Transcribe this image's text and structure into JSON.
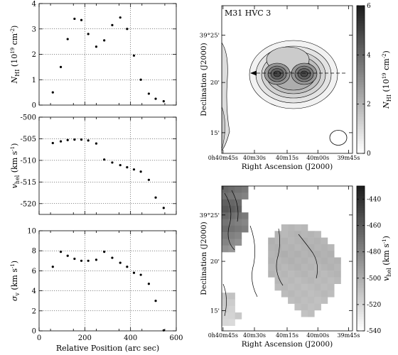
{
  "chart_data": [
    {
      "type": "scatter",
      "panel": "N_HI profile",
      "ylabel": "N_HI (10^19 cm^-2)",
      "ylabel_main": "N",
      "ylabel_sub": "HI",
      "ylabel_rest": " (10",
      "ylabel_exp": "19",
      "ylabel_unit": " cm",
      "ylabel_unit_exp": "-2",
      "ylabel_close": ")",
      "xlim": [
        0,
        600
      ],
      "ylim": [
        0,
        4
      ],
      "xticks": [
        "0",
        "200",
        "400",
        "600"
      ],
      "yticks": [
        "0",
        "1",
        "2",
        "3",
        "4"
      ],
      "show_xtick_labels": false,
      "grid": true,
      "x": [
        60,
        95,
        125,
        155,
        185,
        215,
        250,
        285,
        320,
        355,
        385,
        415,
        445,
        480,
        510,
        545
      ],
      "y": [
        0.5,
        1.5,
        2.6,
        3.4,
        3.35,
        2.8,
        2.3,
        2.55,
        3.15,
        3.45,
        3.0,
        1.95,
        1.0,
        0.45,
        0.25,
        0.15
      ]
    },
    {
      "type": "scatter",
      "panel": "velocity profile",
      "ylabel": "v_hel (km s^-1)",
      "ylabel_main": "v",
      "ylabel_sub": "hel",
      "ylabel_rest": " (km s",
      "ylabel_unit_exp": "-1",
      "ylabel_close": ")",
      "xlim": [
        0,
        600
      ],
      "ylim": [
        -522.5,
        -500
      ],
      "xticks": [
        "0",
        "200",
        "400",
        "600"
      ],
      "yticks": [
        "-520",
        "-515",
        "-510",
        "-505",
        "-500"
      ],
      "show_xtick_labels": false,
      "grid": true,
      "x": [
        60,
        95,
        125,
        155,
        185,
        215,
        250,
        285,
        320,
        355,
        385,
        415,
        445,
        480,
        510,
        545
      ],
      "y": [
        -506.0,
        -505.6,
        -505.3,
        -505.2,
        -505.2,
        -505.4,
        -506.1,
        -509.8,
        -510.5,
        -511.1,
        -511.6,
        -512.1,
        -512.6,
        -514.5,
        -518.6,
        -521.0
      ]
    },
    {
      "type": "scatter",
      "panel": "dispersion profile",
      "ylabel": "σ_v (km s^-1)",
      "ylabel_main": "σ",
      "ylabel_sub": "v",
      "ylabel_rest": " (km s",
      "ylabel_unit_exp": "-1",
      "ylabel_close": ")",
      "xlabel": "Relative Position (arc sec)",
      "xlim": [
        0,
        600
      ],
      "ylim": [
        0,
        10
      ],
      "xticks": [
        "0",
        "200",
        "400",
        "600"
      ],
      "yticks": [
        "0",
        "2",
        "4",
        "6",
        "8",
        "10"
      ],
      "show_xtick_labels": true,
      "grid": true,
      "x": [
        60,
        95,
        125,
        155,
        185,
        215,
        250,
        285,
        320,
        355,
        385,
        415,
        445,
        480,
        510,
        545
      ],
      "y": [
        6.4,
        7.9,
        7.5,
        7.2,
        7.0,
        7.0,
        7.1,
        7.9,
        7.3,
        6.8,
        6.4,
        5.8,
        5.6,
        4.7,
        3.0,
        0.05
      ]
    },
    {
      "type": "heatmap",
      "panel": "column density map",
      "title": "M31 HVC 3",
      "xlabel": "Right Ascension (J2000)",
      "ylabel": "Declination (J2000)",
      "ra_ticks": [
        "0h40m45s",
        "40m30s",
        "40m15s",
        "40m00s",
        "39m45s"
      ],
      "ra_tick_parts": [
        [
          "0",
          "h",
          "40",
          "m",
          "45",
          "s"
        ],
        [
          "40",
          "m",
          "30",
          "s"
        ],
        [
          "40",
          "m",
          "15",
          "s"
        ],
        [
          "40",
          "m",
          "00",
          "s"
        ],
        [
          "39",
          "m",
          "45",
          "s"
        ]
      ],
      "dec_ticks": [
        "39°25'",
        "20'",
        "15'"
      ],
      "dec_tick_parts": [
        [
          "39",
          "°",
          "25'"
        ],
        [
          "20'"
        ],
        [
          "15'"
        ]
      ],
      "colorbar_label": "N_HI (10^19 cm^-2)",
      "colorbar_ticks": [
        "0",
        "2",
        "4",
        "6"
      ],
      "colorbar_range": [
        0,
        6
      ],
      "peaks": [
        {
          "ra": "0h40m22s",
          "dec": "39°21.5'",
          "value": 5.0
        },
        {
          "ra": "0h40m07s",
          "dec": "39°21.5'",
          "value": 4.9
        }
      ],
      "slice_arrow": {
        "direction": "east-to-west",
        "dec": "39°21.5'"
      },
      "beam": "ellipse in lower-right corner"
    },
    {
      "type": "heatmap",
      "panel": "velocity field",
      "xlabel": "Right Ascension (J2000)",
      "ylabel": "Declination (J2000)",
      "ra_ticks": [
        "0h40m45s",
        "40m30s",
        "40m15s",
        "40m00s",
        "39m45s"
      ],
      "dec_ticks": [
        "39°25'",
        "20'",
        "15'"
      ],
      "colorbar_label": "v_hel (km s^-1)",
      "colorbar_ticks": [
        "-440",
        "-460",
        "-480",
        "-500",
        "-520",
        "-540"
      ],
      "colorbar_range": [
        -540,
        -430
      ]
    }
  ],
  "colors": {
    "ink": "#000000",
    "background": "#ffffff",
    "map_low": "#ffffff",
    "map_high": "#111111"
  }
}
